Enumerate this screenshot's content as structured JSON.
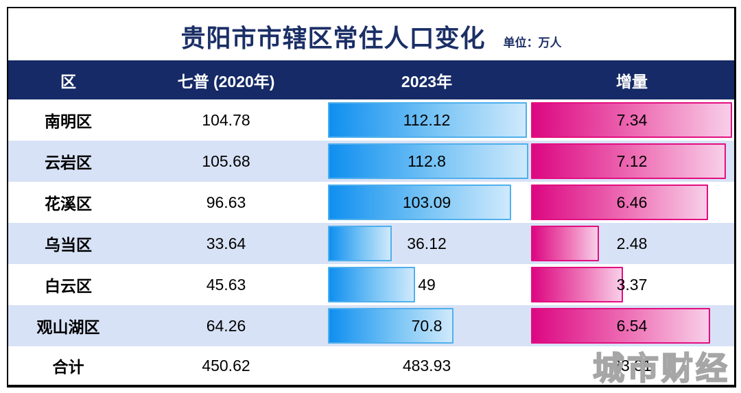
{
  "title": "贵阳市市辖区常住人口变化",
  "unit_label": "单位：万人",
  "watermark": "城市财经",
  "colors": {
    "header_bg": "#152a66",
    "title_text": "#1b2f66",
    "alt_row_bg": "#d8e2f6",
    "bar_blue_start": "#0f8ff0",
    "bar_blue_end": "#cfe9fc",
    "bar_blue_border": "#4fafec",
    "bar_pink_start": "#dc0782",
    "bar_pink_end": "#f8cfe8",
    "bar_pink_border": "#e30e80"
  },
  "table": {
    "headers": {
      "district": "区",
      "census2020": "七普 (2020年)",
      "y2023": "2023年",
      "increase": "增量"
    },
    "rows": [
      {
        "district": "南明区",
        "census2020": "104.78",
        "y2023": "112.12",
        "increase": "7.34"
      },
      {
        "district": "云岩区",
        "census2020": "105.68",
        "y2023": "112.8",
        "increase": "7.12"
      },
      {
        "district": "花溪区",
        "census2020": "96.63",
        "y2023": "103.09",
        "increase": "6.46"
      },
      {
        "district": "乌当区",
        "census2020": "33.64",
        "y2023": "36.12",
        "increase": "2.48"
      },
      {
        "district": "白云区",
        "census2020": "45.63",
        "y2023": "49",
        "increase": "3.37"
      },
      {
        "district": "观山湖区",
        "census2020": "64.26",
        "y2023": "70.8",
        "increase": "6.54"
      }
    ],
    "total": {
      "district": "合计",
      "census2020": "450.62",
      "y2023": "483.93",
      "increase": "33.31"
    }
  },
  "chart_data": {
    "type": "bar",
    "title": "贵阳市市辖区常住人口变化",
    "unit": "万人",
    "categories": [
      "南明区",
      "云岩区",
      "花溪区",
      "乌当区",
      "白云区",
      "观山湖区"
    ],
    "series": [
      {
        "name": "七普 (2020年)",
        "values": [
          104.78,
          105.68,
          96.63,
          33.64,
          45.63,
          64.26
        ]
      },
      {
        "name": "2023年",
        "values": [
          112.12,
          112.8,
          103.09,
          36.12,
          49,
          70.8
        ]
      },
      {
        "name": "增量",
        "values": [
          7.34,
          7.12,
          6.46,
          2.48,
          3.37,
          6.54
        ]
      }
    ],
    "totals": {
      "census2020": 450.62,
      "y2023": 483.93,
      "increase": 33.31
    },
    "bar_scale": {
      "y2023_max": 112.8,
      "increase_max": 7.34
    },
    "layout": "horizontal-bars-in-table, bars scaled to column max, labels centered per column"
  }
}
